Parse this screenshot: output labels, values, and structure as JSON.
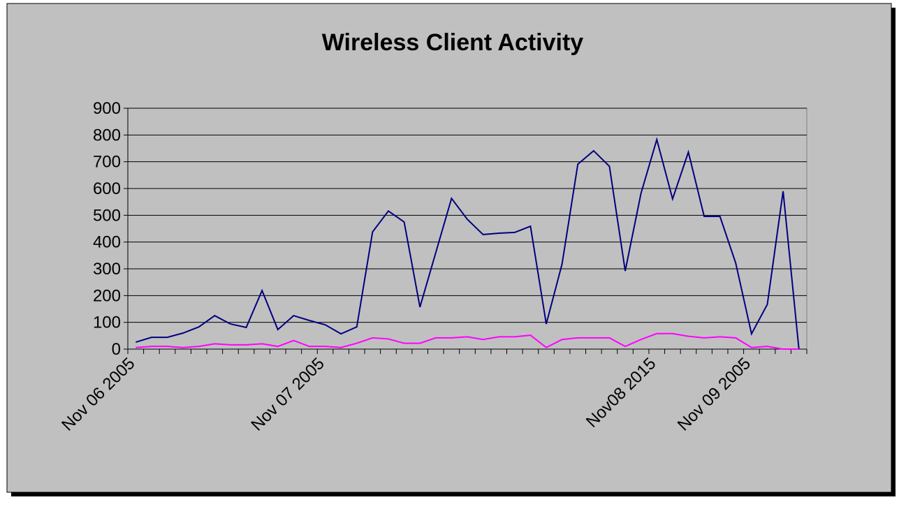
{
  "chart_data": {
    "type": "line",
    "title": "Wireless Client Activity",
    "categories": [
      "Nov 06 2005",
      null,
      null,
      null,
      null,
      null,
      null,
      null,
      null,
      null,
      null,
      null,
      "Nov 07 2005",
      null,
      null,
      null,
      null,
      null,
      null,
      null,
      null,
      null,
      null,
      null,
      null,
      null,
      null,
      null,
      null,
      null,
      null,
      null,
      null,
      "Nov08 2015",
      null,
      null,
      null,
      null,
      null,
      "Nov 09 2005",
      null,
      null,
      null
    ],
    "series": [
      {
        "color": "#000080",
        "values": [
          26,
          44,
          44,
          60,
          83,
          125,
          94,
          81,
          219,
          73,
          125,
          107,
          91,
          57,
          83,
          438,
          516,
          475,
          157,
          360,
          563,
          485,
          428,
          433,
          436,
          459,
          94,
          318,
          691,
          741,
          683,
          292,
          582,
          783,
          561,
          736,
          496,
          496,
          321,
          57,
          167,
          590,
          0
        ]
      },
      {
        "color": "#ff00ff",
        "values": [
          6,
          10,
          10,
          6,
          10,
          20,
          16,
          16,
          20,
          10,
          32,
          10,
          10,
          6,
          22,
          42,
          38,
          22,
          22,
          42,
          42,
          46,
          36,
          46,
          46,
          52,
          6,
          36,
          42,
          42,
          42,
          10,
          36,
          58,
          58,
          48,
          42,
          46,
          42,
          6,
          10,
          0,
          0
        ]
      }
    ],
    "ylim": [
      0,
      900
    ],
    "yticks": [
      0,
      100,
      200,
      300,
      400,
      500,
      600,
      700,
      800,
      900
    ],
    "grid": true
  }
}
